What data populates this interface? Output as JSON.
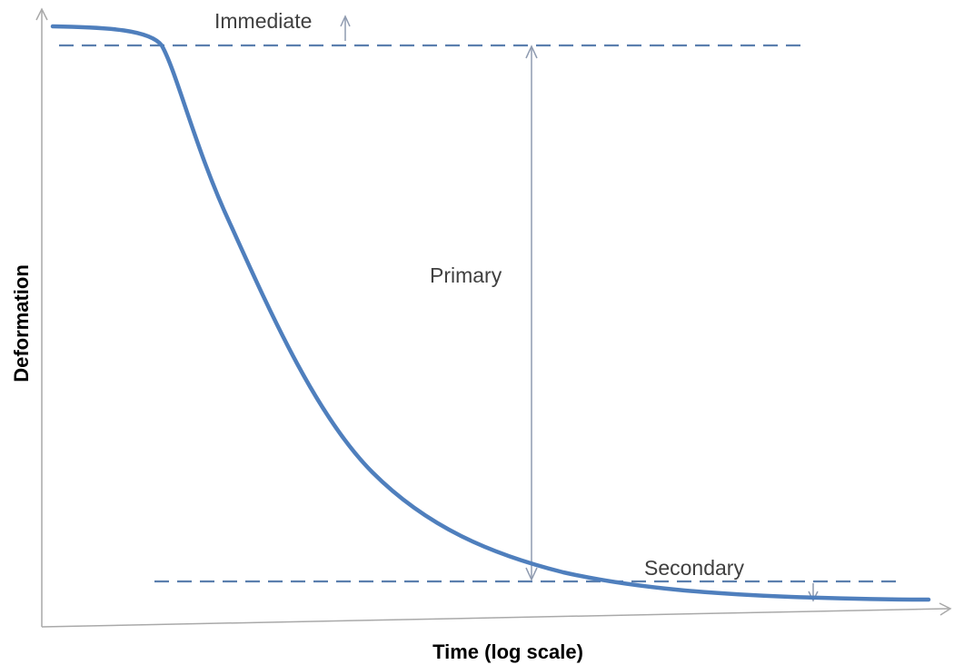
{
  "colors": {
    "curve": "#4f7fbd",
    "dashed_line": "#5b7fae",
    "axis": "#a9a9a9",
    "arrow": "#8f9bb0",
    "label_text": "#404040",
    "axis_title_text": "#000000"
  },
  "axes": {
    "x_title": "Time (log scale)",
    "y_title": "Deformation"
  },
  "labels": {
    "immediate": "Immediate",
    "primary": "Primary",
    "secondary": "Secondary"
  }
}
